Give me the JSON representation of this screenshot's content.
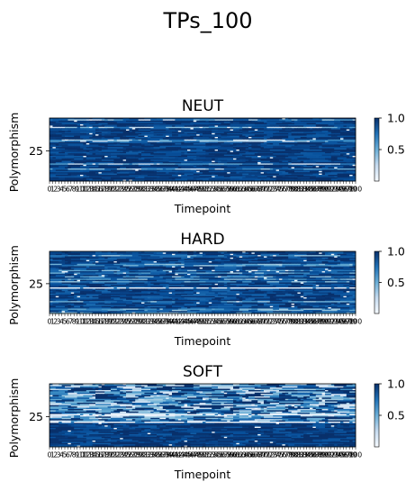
{
  "figure": {
    "title": "TPs_100"
  },
  "colorbar": {
    "colormap": "Blues",
    "range": [
      0,
      1
    ],
    "ticks": [
      "0.5",
      "1.0"
    ]
  },
  "chart_data": [
    {
      "type": "heatmap",
      "title": "NEUT",
      "xlabel": "Timepoint",
      "ylabel": "Polymorphism",
      "x_range": [
        0,
        100
      ],
      "y_ticks": [
        "25"
      ],
      "colormap": "Blues",
      "value_range": [
        0,
        1
      ],
      "pattern": "mostly dark (values near 1) with scattered light horizontal streaks"
    },
    {
      "type": "heatmap",
      "title": "HARD",
      "xlabel": "Timepoint",
      "ylabel": "Polymorphism",
      "x_range": [
        0,
        100
      ],
      "y_ticks": [
        "25"
      ],
      "colormap": "Blues",
      "value_range": [
        0,
        1
      ],
      "pattern": "mostly dark with lighter mid-blue rows and a few white lines"
    },
    {
      "type": "heatmap",
      "title": "SOFT",
      "xlabel": "Timepoint",
      "ylabel": "Polymorphism",
      "x_range": [
        0,
        100
      ],
      "y_ticks": [
        "25"
      ],
      "colormap": "Blues",
      "value_range": [
        0,
        1
      ],
      "pattern": "mixed light and dark blocks in upper half, darker lower band with white lines"
    }
  ]
}
